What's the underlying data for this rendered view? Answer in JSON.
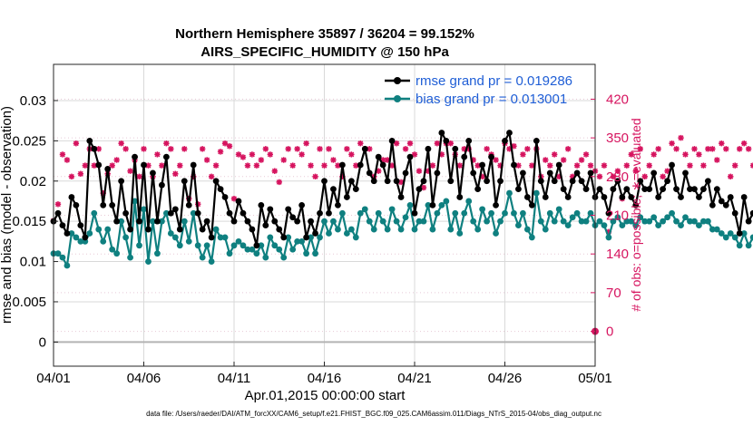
{
  "chart_data": {
    "type": "line",
    "title": "Northern Hemisphere 35897 / 36204 = 99.152%",
    "subtitle": "AIRS_SPECIFIC_HUMIDITY @ 150 hPa",
    "xlabel": "Apr.01,2015 00:00:00 start",
    "ylabel": "rmse and bias (model - observation)",
    "y2label": "# of obs: o=possible; ∗=evaluated",
    "xlim": [
      0,
      30
    ],
    "ylim": [
      -0.003,
      0.0345
    ],
    "y2lim": [
      -63,
      483
    ],
    "x_ticks": [
      0,
      5,
      10,
      15,
      20,
      25,
      30
    ],
    "x_tick_labels": [
      "04/01",
      "04/06",
      "04/11",
      "04/16",
      "04/21",
      "04/26",
      "05/01"
    ],
    "y_ticks": [
      0,
      0.005,
      0.01,
      0.015,
      0.02,
      0.025,
      0.03
    ],
    "y_tick_labels": [
      "0",
      "0.005",
      "0.01",
      "0.015",
      "0.02",
      "0.025",
      "0.03"
    ],
    "y2_ticks": [
      0,
      70,
      140,
      210,
      280,
      350,
      420
    ],
    "y2_tick_labels": [
      "0",
      "70",
      "140",
      "210",
      "280",
      "350",
      "420"
    ],
    "legend": [
      {
        "name": "rmse grand pr = 0.019286",
        "color": "#000000"
      },
      {
        "name": "bias grand pr = 0.013001",
        "color": "#0f8080"
      }
    ],
    "colors": {
      "rmse": "#000000",
      "bias": "#0f8080",
      "obs": "#d6145f",
      "zero": "#b3b3b3"
    },
    "step_days": 0.25,
    "series": [
      {
        "name": "rmse",
        "values": [
          0.015,
          0.016,
          0.0145,
          0.0135,
          0.018,
          0.017,
          0.0145,
          0.013,
          0.025,
          0.024,
          0.022,
          0.017,
          0.0215,
          0.017,
          0.015,
          0.02,
          0.016,
          0.014,
          0.023,
          0.015,
          0.022,
          0.014,
          0.021,
          0.015,
          0.0195,
          0.023,
          0.016,
          0.0165,
          0.014,
          0.02,
          0.017,
          0.022,
          0.016,
          0.014,
          0.015,
          0.013,
          0.02,
          0.019,
          0.018,
          0.016,
          0.015,
          0.0175,
          0.016,
          0.015,
          0.014,
          0.012,
          0.017,
          0.0145,
          0.0165,
          0.015,
          0.014,
          0.013,
          0.0165,
          0.0155,
          0.015,
          0.017,
          0.013,
          0.015,
          0.0135,
          0.016,
          0.02,
          0.016,
          0.019,
          0.017,
          0.022,
          0.018,
          0.02,
          0.019,
          0.022,
          0.024,
          0.021,
          0.02,
          0.023,
          0.022,
          0.02,
          0.025,
          0.02,
          0.018,
          0.021,
          0.023,
          0.016,
          0.019,
          0.02,
          0.024,
          0.017,
          0.021,
          0.026,
          0.025,
          0.02,
          0.024,
          0.018,
          0.023,
          0.025,
          0.021,
          0.019,
          0.022,
          0.02,
          0.023,
          0.017,
          0.02,
          0.025,
          0.026,
          0.022,
          0.019,
          0.021,
          0.018,
          0.017,
          0.025,
          0.02,
          0.018,
          0.021,
          0.02,
          0.022,
          0.019,
          0.018,
          0.02,
          0.021,
          0.02,
          0.019,
          0.021,
          0.018,
          0.019,
          0.018,
          0.016,
          0.019,
          0.02,
          0.018,
          0.019,
          0.018,
          0.017,
          0.02,
          0.019,
          0.019,
          0.021,
          0.018,
          0.019,
          0.02,
          0.022,
          0.019,
          0.018,
          0.021,
          0.019,
          0.019,
          0.018,
          0.019,
          0.02,
          0.017,
          0.019,
          0.0175,
          0.017,
          0.018,
          0.016,
          0.0135,
          0.018,
          0.015,
          0.016,
          0.014,
          0.018,
          0.015,
          0.016,
          0.015,
          0.017,
          0.018,
          0.016,
          0.021,
          0.019,
          0.017,
          0.0165,
          0.0175,
          0.017,
          0.021,
          0.02,
          0.0185,
          0.015
        ]
      },
      {
        "name": "bias",
        "values": [
          0.011,
          0.011,
          0.0105,
          0.0095,
          0.0135,
          0.013,
          0.0125,
          0.0125,
          0.0135,
          0.016,
          0.014,
          0.0125,
          0.014,
          0.0115,
          0.011,
          0.015,
          0.013,
          0.0105,
          0.0175,
          0.012,
          0.0165,
          0.01,
          0.015,
          0.011,
          0.015,
          0.016,
          0.0135,
          0.013,
          0.012,
          0.015,
          0.0125,
          0.016,
          0.012,
          0.0105,
          0.012,
          0.01,
          0.014,
          0.013,
          0.013,
          0.011,
          0.012,
          0.0125,
          0.012,
          0.0115,
          0.0115,
          0.011,
          0.012,
          0.0105,
          0.013,
          0.012,
          0.0115,
          0.0105,
          0.013,
          0.0115,
          0.0125,
          0.0125,
          0.011,
          0.013,
          0.011,
          0.013,
          0.015,
          0.0135,
          0.015,
          0.014,
          0.016,
          0.0135,
          0.014,
          0.013,
          0.016,
          0.0165,
          0.015,
          0.014,
          0.016,
          0.015,
          0.014,
          0.0165,
          0.015,
          0.014,
          0.0155,
          0.017,
          0.014,
          0.015,
          0.015,
          0.017,
          0.014,
          0.016,
          0.017,
          0.0175,
          0.014,
          0.016,
          0.0135,
          0.016,
          0.0175,
          0.015,
          0.014,
          0.0165,
          0.015,
          0.016,
          0.0135,
          0.015,
          0.016,
          0.0185,
          0.016,
          0.0145,
          0.016,
          0.014,
          0.013,
          0.0185,
          0.015,
          0.014,
          0.016,
          0.015,
          0.0165,
          0.015,
          0.0145,
          0.0155,
          0.016,
          0.015,
          0.015,
          0.016,
          0.0145,
          0.015,
          0.0145,
          0.013,
          0.015,
          0.0155,
          0.0145,
          0.015,
          0.015,
          0.0145,
          0.0155,
          0.015,
          0.015,
          0.0155,
          0.0145,
          0.015,
          0.0155,
          0.016,
          0.015,
          0.0145,
          0.0155,
          0.015,
          0.015,
          0.0145,
          0.015,
          0.015,
          0.014,
          0.014,
          0.0135,
          0.013,
          0.0135,
          0.013,
          0.012,
          0.0135,
          0.012,
          0.013,
          0.0115,
          0.0135,
          0.012,
          0.0125,
          0.012,
          0.013,
          0.0135,
          0.012,
          0.0145,
          0.013,
          0.0115,
          0.012,
          0.0125,
          0.012,
          0.015,
          0.0145,
          0.0125,
          0.0115
        ]
      },
      {
        "name": "obs_evaluated",
        "axis": "right",
        "values": [
          200,
          230,
          320,
          310,
          280,
          340,
          285,
          300,
          330,
          300,
          330,
          250,
          285,
          300,
          310,
          340,
          330,
          290,
          310,
          280,
          330,
          300,
          280,
          320,
          300,
          340,
          330,
          285,
          300,
          330,
          240,
          280,
          230,
          330,
          310,
          280,
          300,
          325,
          340,
          335,
          240,
          320,
          315,
          300,
          320,
          300,
          310,
          330,
          320,
          290,
          270,
          310,
          330,
          300,
          330,
          320,
          340,
          300,
          280,
          330,
          300,
          330,
          310,
          300,
          280,
          330,
          320,
          300,
          340,
          330,
          330,
          280,
          290,
          310,
          310,
          300,
          340,
          270,
          330,
          340,
          320,
          290,
          260,
          290,
          300,
          340,
          320,
          340,
          340,
          320,
          300,
          330,
          330,
          310,
          300,
          280,
          330,
          320,
          310,
          300,
          340,
          330,
          335,
          300,
          320,
          330,
          300,
          330,
          280,
          310,
          300,
          320,
          280,
          310,
          330,
          280,
          300,
          310,
          320,
          300,
          290,
          280,
          300,
          180,
          280,
          290,
          240,
          300,
          320,
          290,
          330,
          280,
          300,
          320,
          330,
          280,
          290,
          340,
          330,
          350,
          320,
          300,
          330,
          320,
          300,
          330,
          330,
          310,
          340,
          330,
          280,
          300,
          330,
          340,
          330,
          300,
          320,
          310,
          340,
          330,
          300,
          310,
          320,
          340,
          330,
          280,
          300,
          330,
          310,
          330,
          320,
          340,
          290,
          320,
          340,
          340,
          330
        ]
      }
    ],
    "footnote": "data file: /Users/raeder/DAI/ATM_forcXX/CAM6_setup/f.e21.FHIST_BGC.f09_025.CAM6assim.011/Diags_NTrS_2015-04/obs_diag_output.nc"
  }
}
